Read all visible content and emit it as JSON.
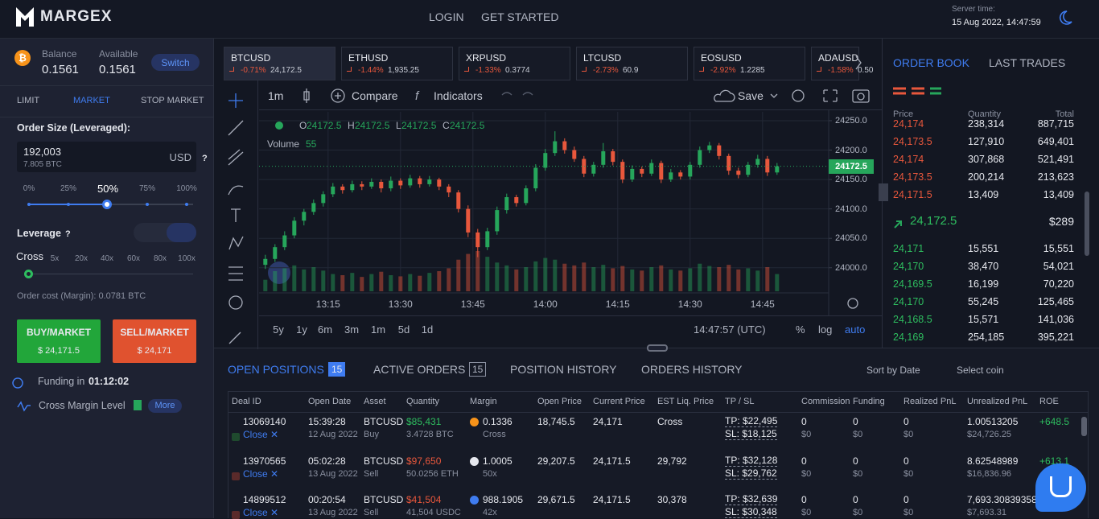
{
  "header": {
    "logo": "MARGEX",
    "nav": [
      "LOGIN",
      "GET STARTED"
    ],
    "server_time_label": "Server time:",
    "server_time": "15 Aug 2022, 14:47:59"
  },
  "account": {
    "balance_label": "Balance",
    "balance": "0.1561",
    "available_label": "Available",
    "available": "0.1561",
    "switch": "Switch"
  },
  "order_form": {
    "tabs": [
      "LIMIT",
      "MARKET",
      "STOP MARKET"
    ],
    "size_label": "Order Size (Leveraged):",
    "size": "192,003",
    "size_btc": "7.805 BTC",
    "currency": "USD",
    "help": "?",
    "size_marks": [
      "0%",
      "25%",
      "50%",
      "75%",
      "100%"
    ],
    "leverage_label": "Leverage",
    "leverage_help": "?",
    "cross": "Cross",
    "leverage_marks": [
      "5x",
      "20x",
      "40x",
      "60x",
      "80x",
      "100x"
    ],
    "order_cost": "Order cost (Margin): 0.0781 BTC",
    "buy_label": "BUY/MARKET",
    "buy_price": "$ 24,171.5",
    "sell_label": "SELL/MARKET",
    "sell_price": "$ 24,171",
    "funding_label": "Funding in",
    "funding_value": "01:12:02",
    "cross_margin_label": "Cross Margin Level",
    "more": "More"
  },
  "tickers": [
    {
      "symbol": "BTCUSD",
      "change": "-0.71%",
      "price": "24,172.5"
    },
    {
      "symbol": "ETHUSD",
      "change": "-1.44%",
      "price": "1,935.25"
    },
    {
      "symbol": "XRPUSD",
      "change": "-1.33%",
      "price": "0.3774"
    },
    {
      "symbol": "LTCUSD",
      "change": "-2.73%",
      "price": "60.9"
    },
    {
      "symbol": "EOSUSD",
      "change": "-2.92%",
      "price": "1.2285"
    },
    {
      "symbol": "ADAUSD",
      "change": "-1.58%",
      "price": "0.50"
    }
  ],
  "toolbar": {
    "interval": "1m",
    "compare": "Compare",
    "indicators": "Indicators",
    "save": "Save"
  },
  "chart_data": {
    "type": "candlestick",
    "ohlc": [
      {
        "k": "O",
        "v": "24172.5"
      },
      {
        "k": "H",
        "v": "24172.5"
      },
      {
        "k": "L",
        "v": "24172.5"
      },
      {
        "k": "C",
        "v": "24172.5"
      }
    ],
    "volume_label": "Volume",
    "volume_value": "55",
    "last_label": "24172.5",
    "x": [
      782,
      784,
      786,
      788,
      790,
      792,
      794,
      796,
      798,
      800,
      802,
      804,
      806,
      808,
      810,
      812,
      814,
      816,
      818,
      820,
      822,
      824,
      826,
      828,
      830,
      832,
      834,
      836,
      838,
      840,
      842,
      844,
      846,
      848,
      850,
      852,
      854,
      856,
      858,
      860,
      862,
      864,
      866,
      868,
      870,
      872,
      874,
      876,
      878,
      880,
      882,
      884,
      886,
      888
    ],
    "candles": [
      [
        24005,
        24022,
        23998,
        24015
      ],
      [
        24015,
        24040,
        24010,
        24035
      ],
      [
        24035,
        24062,
        24030,
        24055
      ],
      [
        24055,
        24086,
        24050,
        24080
      ],
      [
        24080,
        24100,
        24072,
        24095
      ],
      [
        24095,
        24116,
        24090,
        24110
      ],
      [
        24110,
        24130,
        24104,
        24125
      ],
      [
        24125,
        24144,
        24120,
        24138
      ],
      [
        24138,
        24142,
        24126,
        24132
      ],
      [
        24132,
        24148,
        24128,
        24142
      ],
      [
        24142,
        24147,
        24132,
        24138
      ],
      [
        24138,
        24152,
        24134,
        24146
      ],
      [
        24146,
        24150,
        24128,
        24135
      ],
      [
        24135,
        24155,
        24130,
        24148
      ],
      [
        24148,
        24152,
        24134,
        24140
      ],
      [
        24140,
        24158,
        24136,
        24152
      ],
      [
        24152,
        24156,
        24136,
        24142
      ],
      [
        24142,
        24156,
        24138,
        24150
      ],
      [
        24150,
        24153,
        24132,
        24138
      ],
      [
        24138,
        24142,
        24120,
        24128
      ],
      [
        24128,
        24132,
        24094,
        24100
      ],
      [
        24100,
        24106,
        24052,
        24060
      ],
      [
        24060,
        24066,
        24018,
        24035
      ],
      [
        24035,
        24068,
        24030,
        24062
      ],
      [
        24062,
        24104,
        24056,
        24098
      ],
      [
        24098,
        24126,
        24092,
        24120
      ],
      [
        24120,
        24124,
        24104,
        24110
      ],
      [
        24110,
        24140,
        24106,
        24135
      ],
      [
        24135,
        24176,
        24130,
        24170
      ],
      [
        24170,
        24202,
        24165,
        24195
      ],
      [
        24195,
        24232,
        24190,
        24215
      ],
      [
        24215,
        24220,
        24194,
        24200
      ],
      [
        24200,
        24206,
        24180,
        24185
      ],
      [
        24185,
        24190,
        24154,
        24160
      ],
      [
        24160,
        24180,
        24155,
        24175
      ],
      [
        24175,
        24212,
        24170,
        24198
      ],
      [
        24198,
        24202,
        24174,
        24180
      ],
      [
        24180,
        24184,
        24144,
        24150
      ],
      [
        24150,
        24174,
        24146,
        24168
      ],
      [
        24168,
        24172,
        24154,
        24160
      ],
      [
        24160,
        24184,
        24156,
        24178
      ],
      [
        24178,
        24182,
        24144,
        24150
      ],
      [
        24150,
        24168,
        24146,
        24162
      ],
      [
        24162,
        24166,
        24150,
        24155
      ],
      [
        24155,
        24180,
        24150,
        24175
      ],
      [
        24175,
        24206,
        24170,
        24200
      ],
      [
        24200,
        24214,
        24195,
        24208
      ],
      [
        24208,
        24212,
        24184,
        24190
      ],
      [
        24190,
        24194,
        24158,
        24165
      ],
      [
        24165,
        24170,
        24152,
        24158
      ],
      [
        24158,
        24180,
        24154,
        24175
      ],
      [
        24175,
        24192,
        24170,
        24185
      ],
      [
        24185,
        24190,
        24156,
        24162
      ],
      [
        24162,
        24178,
        24158,
        24172.5
      ]
    ],
    "volumes": [
      20,
      35,
      40,
      45,
      38,
      42,
      36,
      30,
      28,
      32,
      25,
      30,
      34,
      28,
      26,
      30,
      27,
      32,
      35,
      40,
      55,
      65,
      70,
      60,
      50,
      45,
      38,
      42,
      52,
      58,
      55,
      48,
      45,
      50,
      42,
      46,
      40,
      44,
      38,
      36,
      42,
      45,
      38,
      36,
      40,
      48,
      44,
      42,
      46,
      38,
      40,
      36,
      42,
      30
    ],
    "up_color": "#26a65b",
    "down_color": "#e8573c",
    "xlim": [
      780.7,
      898.7
    ],
    "xticks": [
      {
        "value": 795,
        "label": "13:15"
      },
      {
        "value": 810,
        "label": "13:30"
      },
      {
        "value": 825,
        "label": "13:45"
      },
      {
        "value": 840,
        "label": "14:00"
      },
      {
        "value": 855,
        "label": "14:15"
      },
      {
        "value": 870,
        "label": "14:30"
      },
      {
        "value": 885,
        "label": "14:45"
      }
    ],
    "ylim": [
      23960,
      24265
    ],
    "yticks": [
      {
        "value": 24000,
        "label": "24000.0"
      },
      {
        "value": 24050,
        "label": "24050.0"
      },
      {
        "value": 24100,
        "label": "24100.0"
      },
      {
        "value": 24150,
        "label": "24150.0"
      },
      {
        "value": 24200,
        "label": "24200.0"
      },
      {
        "value": 24250,
        "label": "24250.0"
      }
    ],
    "grid": true,
    "ranges": [
      "5y",
      "1y",
      "6m",
      "3m",
      "1m",
      "5d",
      "1d"
    ],
    "clock": "14:47:57 (UTC)",
    "percent": "%",
    "log": "log",
    "auto": "auto"
  },
  "order_book": {
    "tabs": [
      "ORDER BOOK",
      "LAST TRADES"
    ],
    "headers": [
      "Price",
      "Quantity",
      "Total"
    ],
    "asks": [
      [
        "24,174",
        "238,314",
        "887,715"
      ],
      [
        "24,173.5",
        "127,910",
        "649,401"
      ],
      [
        "24,174",
        "307,868",
        "521,491"
      ],
      [
        "24,173.5",
        "200,214",
        "213,623"
      ],
      [
        "24,171.5",
        "13,409",
        "13,409"
      ]
    ],
    "last_price": "24,172.5",
    "last_usd": "$289",
    "bids": [
      [
        "24,171",
        "15,551",
        "15,551"
      ],
      [
        "24,170",
        "38,470",
        "54,021"
      ],
      [
        "24,169.5",
        "16,199",
        "70,220"
      ],
      [
        "24,170",
        "55,245",
        "125,465"
      ],
      [
        "24,168.5",
        "15,571",
        "141,036"
      ],
      [
        "24,169",
        "254,185",
        "395,221"
      ]
    ]
  },
  "positions": {
    "tabs": [
      {
        "label": "OPEN POSITIONS",
        "count": "15"
      },
      {
        "label": "ACTIVE ORDERS",
        "count": "15"
      },
      {
        "label": "POSITION HISTORY"
      },
      {
        "label": "ORDERS HISTORY"
      }
    ],
    "sort": "Sort by Date",
    "select_coin": "Select coin",
    "columns": [
      "Deal ID",
      "Open Date",
      "Asset",
      "Quantity",
      "Margin",
      "Open Price",
      "Current Price",
      "EST Liq. Price",
      "TP / SL",
      "Commission",
      "Funding",
      "Realized PnL",
      "Unrealized PnL",
      "ROE"
    ],
    "rows": [
      [
        [
          "13069140",
          "Close ✕"
        ],
        [
          "15:39:28",
          "12 Aug 2022"
        ],
        [
          "BTCUSD",
          "Buy"
        ],
        [
          "$85,431",
          "3.4728 BTC"
        ],
        [
          "0.1336",
          "Cross"
        ],
        [
          "18,745.5"
        ],
        [
          "24,171"
        ],
        [
          "Cross"
        ],
        [
          "TP: $22,495",
          "SL: $18,125"
        ],
        [
          "0",
          "$0"
        ],
        [
          "0",
          "$0"
        ],
        [
          "0",
          "$0"
        ],
        [
          "1.00513205",
          "$24,726.25"
        ],
        [
          "+648.5"
        ]
      ],
      [
        [
          "13970565",
          "Close ✕"
        ],
        [
          "05:02:28",
          "13 Aug 2022"
        ],
        [
          "BTCUSD",
          "Sell"
        ],
        [
          "$97,650",
          "50.0256 ETH"
        ],
        [
          "1.0005",
          "50x"
        ],
        [
          "29,207.5"
        ],
        [
          "24,171.5"
        ],
        [
          "29,792"
        ],
        [
          "TP: $32,128",
          "SL: $29,762"
        ],
        [
          "0",
          "$0"
        ],
        [
          "0",
          "$0"
        ],
        [
          "0",
          "$0"
        ],
        [
          "8.62548989",
          "$16,836.96"
        ],
        [
          "+613.1"
        ]
      ],
      [
        [
          "14899512",
          "Close ✕"
        ],
        [
          "00:20:54",
          "13 Aug 2022"
        ],
        [
          "BTCUSD",
          "Sell"
        ],
        [
          "$41,504",
          "41,504 USDC"
        ],
        [
          "988.1905",
          "42x"
        ],
        [
          "29,671.5"
        ],
        [
          "24,171.5"
        ],
        [
          "30,378"
        ],
        [
          "TP: $32,639",
          "SL: $30,348"
        ],
        [
          "0",
          "$0"
        ],
        [
          "0",
          "$0"
        ],
        [
          "0",
          "$0"
        ],
        [
          "7,693.30839358",
          "$7,693.31"
        ]
      ]
    ]
  }
}
